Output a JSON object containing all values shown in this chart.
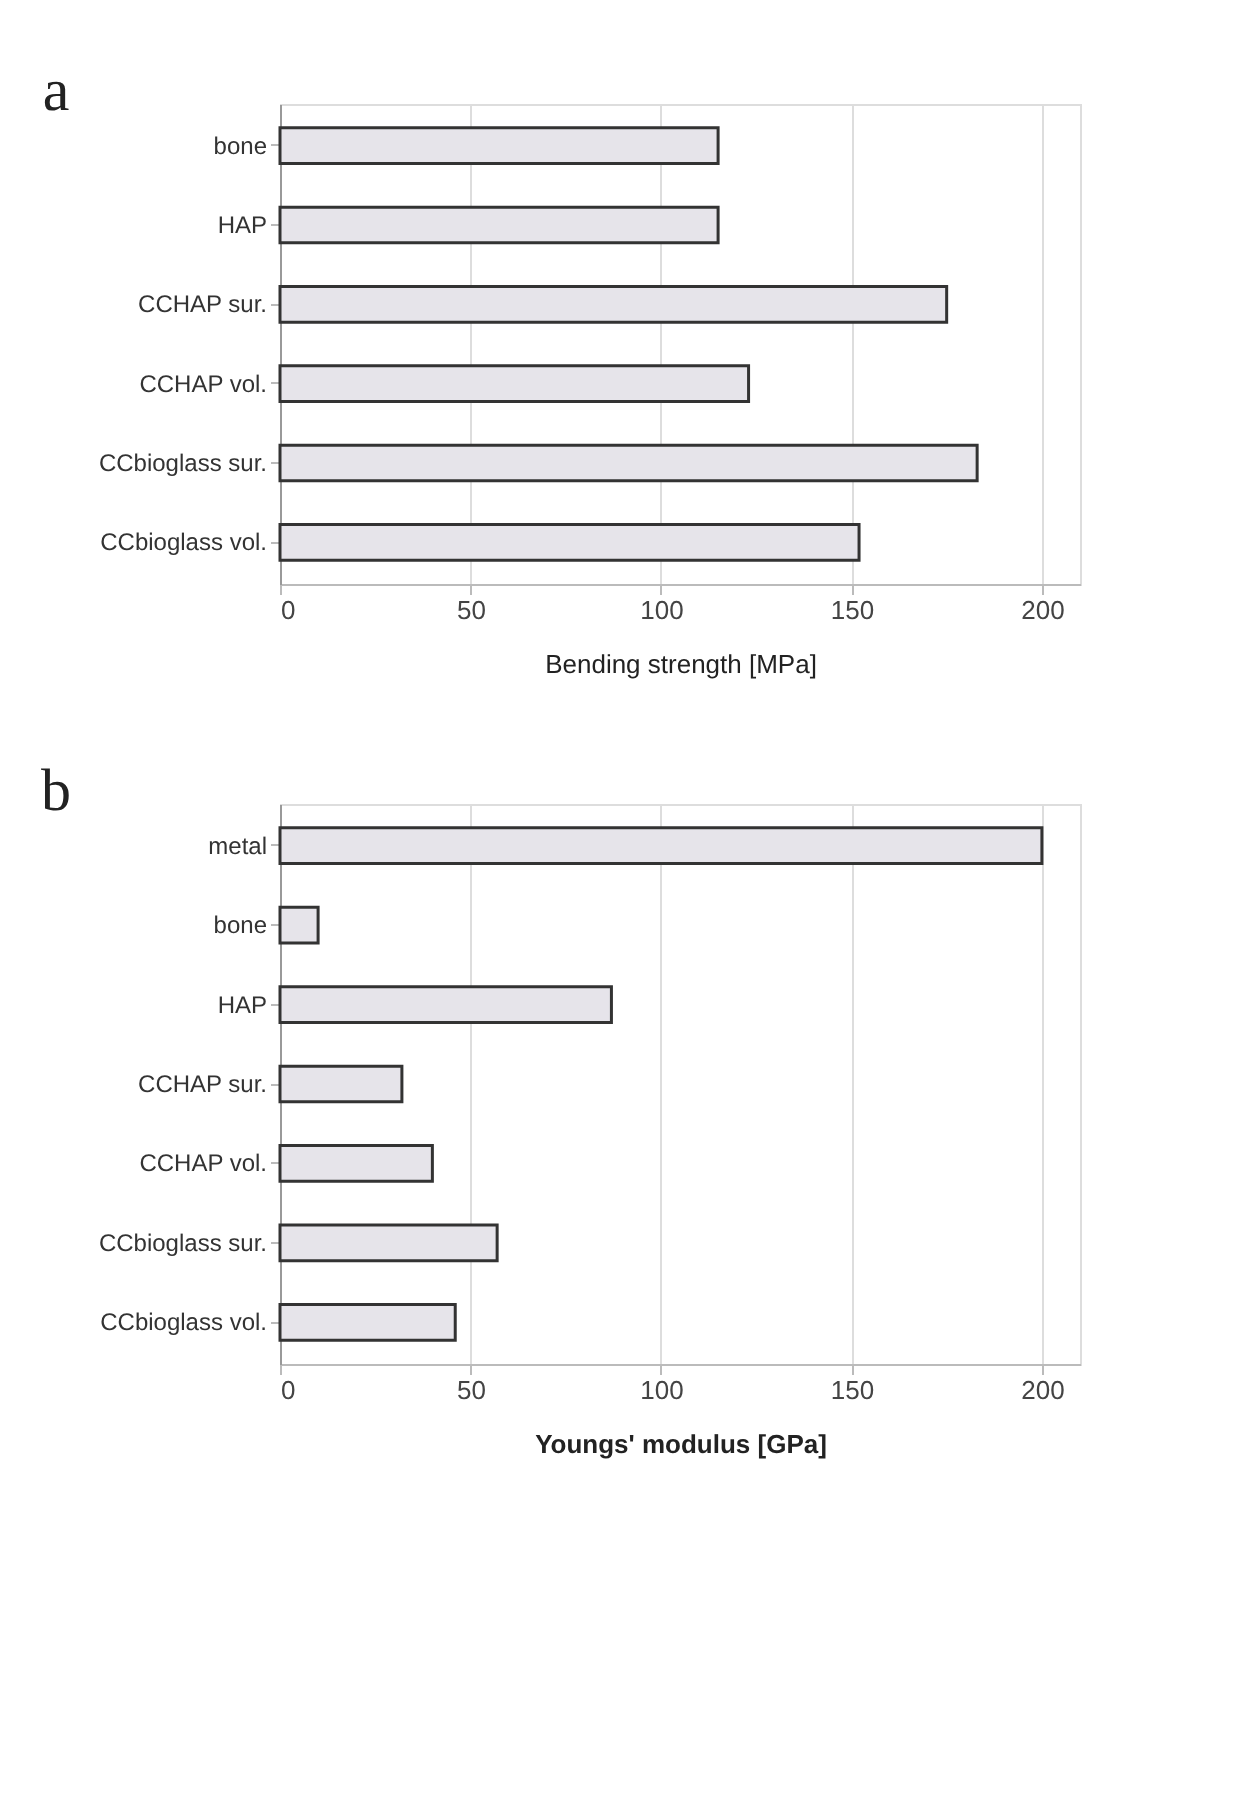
{
  "chart_data": [
    {
      "type": "bar",
      "orientation": "horizontal",
      "annotations": [
        "a"
      ],
      "xlabel": "Bending strength [MPa]",
      "categories": [
        "bone",
        "HAP",
        "CCHAP sur.",
        "CCHAP vol.",
        "CCbioglass sur.",
        "CCbioglass vol."
      ],
      "values": [
        115,
        115,
        175,
        123,
        183,
        152
      ],
      "color": "#e6e4ea",
      "xlim": [
        0,
        210
      ],
      "xticks": [
        0,
        50,
        100,
        150,
        200
      ],
      "grid": "x"
    },
    {
      "type": "bar",
      "orientation": "horizontal",
      "annotations": [
        "b"
      ],
      "xlabel": "Youngs' modulus [GPa]",
      "categories": [
        "metal",
        "bone",
        "HAP",
        "CCHAP sur.",
        "CCHAP vol.",
        "CCbioglass sur.",
        "CCbioglass vol."
      ],
      "values": [
        200,
        10,
        87,
        32,
        40,
        57,
        46
      ],
      "color": "#e6e4ea",
      "xlim": [
        0,
        210
      ],
      "xticks": [
        0,
        50,
        100,
        150,
        200
      ],
      "grid": "x"
    }
  ]
}
